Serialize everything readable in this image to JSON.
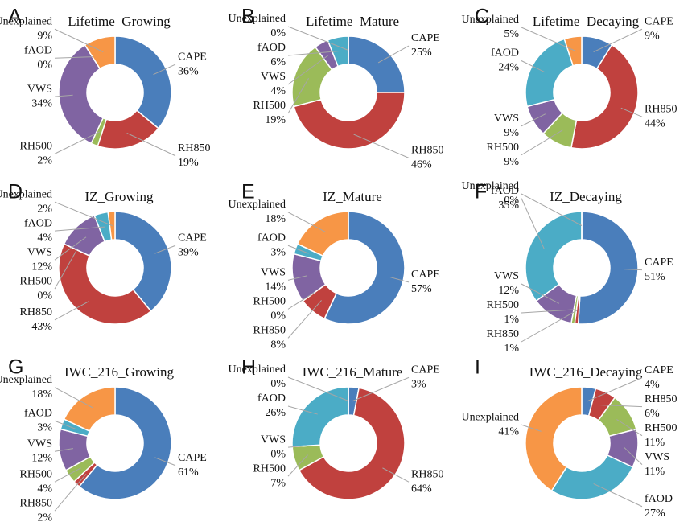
{
  "chart_data": [
    {
      "type": "pie",
      "label": "A",
      "title": "Lifetime_Growing",
      "categories": [
        "CAPE",
        "RH850",
        "RH500",
        "VWS",
        "fAOD",
        "Unexplained"
      ],
      "values": [
        36,
        19,
        2,
        34,
        0,
        9
      ],
      "value_labels": [
        "36%",
        "19%",
        "2%",
        "34%",
        "0%",
        "9%"
      ],
      "colors": [
        "#4a7ebb",
        "#c0413e",
        "#9bbb59",
        "#8064a2",
        "#4bacc6",
        "#f79646"
      ]
    },
    {
      "type": "pie",
      "label": "B",
      "title": "Lifetime_Mature",
      "categories": [
        "CAPE",
        "RH850",
        "RH500",
        "VWS",
        "fAOD",
        "Unexplained"
      ],
      "values": [
        25,
        46,
        19,
        4,
        6,
        0
      ],
      "value_labels": [
        "25%",
        "46%",
        "19%",
        "4%",
        "6%",
        "0%"
      ],
      "colors": [
        "#4a7ebb",
        "#c0413e",
        "#9bbb59",
        "#8064a2",
        "#4bacc6",
        "#f79646"
      ]
    },
    {
      "type": "pie",
      "label": "C",
      "title": "Lifetime_Decaying",
      "categories": [
        "CAPE",
        "RH850",
        "RH500",
        "VWS",
        "fAOD",
        "Unexplained"
      ],
      "values": [
        9,
        44,
        9,
        9,
        24,
        5
      ],
      "value_labels": [
        "9%",
        "44%",
        "9%",
        "9%",
        "24%",
        "5%"
      ],
      "colors": [
        "#4a7ebb",
        "#c0413e",
        "#9bbb59",
        "#8064a2",
        "#4bacc6",
        "#f79646"
      ]
    },
    {
      "type": "pie",
      "label": "D",
      "title": "IZ_Growing",
      "categories": [
        "CAPE",
        "RH850",
        "RH500",
        "VWS",
        "fAOD",
        "Unexplained"
      ],
      "values": [
        39,
        43,
        0,
        12,
        4,
        2
      ],
      "value_labels": [
        "39%",
        "43%",
        "0%",
        "12%",
        "4%",
        "2%"
      ],
      "colors": [
        "#4a7ebb",
        "#c0413e",
        "#9bbb59",
        "#8064a2",
        "#4bacc6",
        "#f79646"
      ]
    },
    {
      "type": "pie",
      "label": "E",
      "title": "IZ_Mature",
      "categories": [
        "CAPE",
        "RH850",
        "RH500",
        "VWS",
        "fAOD",
        "Unexplained"
      ],
      "values": [
        57,
        8,
        0,
        14,
        3,
        18
      ],
      "value_labels": [
        "57%",
        "8%",
        "0%",
        "14%",
        "3%",
        "18%"
      ],
      "colors": [
        "#4a7ebb",
        "#c0413e",
        "#9bbb59",
        "#8064a2",
        "#4bacc6",
        "#f79646"
      ]
    },
    {
      "type": "pie",
      "label": "F",
      "title": "IZ_Decaying",
      "categories": [
        "CAPE",
        "RH850",
        "RH500",
        "VWS",
        "fAOD",
        "Unexplained"
      ],
      "values": [
        51,
        1,
        1,
        12,
        35,
        0
      ],
      "value_labels": [
        "51%",
        "1%",
        "1%",
        "12%",
        "35%",
        "0%"
      ],
      "colors": [
        "#4a7ebb",
        "#c0413e",
        "#9bbb59",
        "#8064a2",
        "#4bacc6",
        "#f79646"
      ]
    },
    {
      "type": "pie",
      "label": "G",
      "title": "IWC_216_Growing",
      "categories": [
        "CAPE",
        "RH850",
        "RH500",
        "VWS",
        "fAOD",
        "Unexplained"
      ],
      "values": [
        61,
        2,
        4,
        12,
        3,
        18
      ],
      "value_labels": [
        "61%",
        "2%",
        "4%",
        "12%",
        "3%",
        "18%"
      ],
      "colors": [
        "#4a7ebb",
        "#c0413e",
        "#9bbb59",
        "#8064a2",
        "#4bacc6",
        "#f79646"
      ]
    },
    {
      "type": "pie",
      "label": "H",
      "title": "IWC_216_Mature",
      "categories": [
        "CAPE",
        "RH850",
        "RH500",
        "VWS",
        "fAOD",
        "Unexplained"
      ],
      "values": [
        3,
        64,
        7,
        0,
        26,
        0
      ],
      "value_labels": [
        "3%",
        "64%",
        "7%",
        "0%",
        "26%",
        "0%"
      ],
      "colors": [
        "#4a7ebb",
        "#c0413e",
        "#9bbb59",
        "#8064a2",
        "#4bacc6",
        "#f79646"
      ]
    },
    {
      "type": "pie",
      "label": "I",
      "title": "IWC_216_Decaying",
      "categories": [
        "CAPE",
        "RH850",
        "RH500",
        "VWS",
        "fAOD",
        "Unexplained"
      ],
      "values": [
        4,
        6,
        11,
        11,
        27,
        41
      ],
      "value_labels": [
        "4%",
        "6%",
        "11%",
        "11%",
        "27%",
        "41%"
      ],
      "colors": [
        "#4a7ebb",
        "#c0413e",
        "#9bbb59",
        "#8064a2",
        "#4bacc6",
        "#f79646"
      ]
    }
  ]
}
